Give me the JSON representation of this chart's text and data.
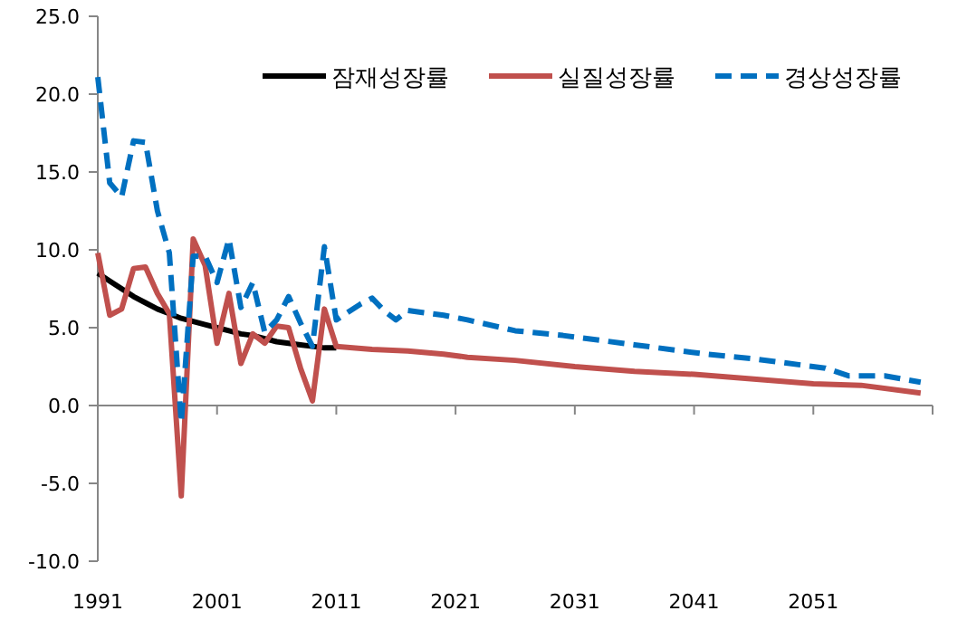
{
  "chart_data": {
    "type": "line",
    "xlim": [
      1991,
      2061
    ],
    "ylim": [
      -10,
      25
    ],
    "xticks": [
      1991,
      2001,
      2011,
      2021,
      2031,
      2041,
      2051,
      {
        "value": 2061,
        "label": null
      }
    ],
    "yticks": [
      {
        "value": -10,
        "label": "-10.0"
      },
      {
        "value": -5,
        "label": "-5.0"
      },
      {
        "value": 0,
        "label": "0.0"
      },
      {
        "value": 5,
        "label": "5.0"
      },
      {
        "value": 10,
        "label": "10.0"
      },
      {
        "value": 15,
        "label": "15.0"
      },
      {
        "value": 20,
        "label": "20.0"
      },
      {
        "value": 25,
        "label": "25.0"
      }
    ],
    "legend": "top",
    "series": [
      {
        "name": "잠재성장률",
        "color": "#000000",
        "line_style": "solid",
        "x": [
          1991,
          1992,
          1993,
          1994,
          1995,
          1996,
          1997,
          1998,
          1999,
          2000,
          2001,
          2002,
          2003,
          2004,
          2005,
          2006,
          2007,
          2008,
          2009,
          2010,
          2011
        ],
        "values": [
          8.5,
          8.0,
          7.5,
          7.0,
          6.6,
          6.2,
          5.9,
          5.6,
          5.4,
          5.2,
          5.0,
          4.8,
          4.6,
          4.5,
          4.3,
          4.1,
          4.0,
          3.9,
          3.8,
          3.7,
          3.7
        ]
      },
      {
        "name": "실질성장률",
        "color": "#c0504d",
        "line_style": "solid",
        "x": [
          1991,
          1992,
          1993,
          1994,
          1995,
          1996,
          1997,
          1998,
          1999,
          2000,
          2001,
          2002,
          2003,
          2004,
          2005,
          2006,
          2007,
          2008,
          2009,
          2010,
          2011,
          2014,
          2017,
          2020,
          2022,
          2026,
          2031,
          2036,
          2041,
          2046,
          2051,
          2055,
          2060
        ],
        "values": [
          9.8,
          5.8,
          6.2,
          8.8,
          8.9,
          7.2,
          5.9,
          -5.8,
          10.7,
          9.0,
          4.0,
          7.2,
          2.7,
          4.6,
          4.0,
          5.1,
          5.0,
          2.4,
          0.3,
          6.2,
          3.8,
          3.6,
          3.5,
          3.3,
          3.1,
          2.9,
          2.5,
          2.2,
          2.0,
          1.7,
          1.4,
          1.3,
          0.8
        ]
      },
      {
        "name": "경상성장률",
        "color": "#0070c0",
        "line_style": "dashed",
        "x": [
          1991,
          1992,
          1993,
          1994,
          1995,
          1996,
          1997,
          1998,
          1999,
          2000,
          2001,
          2002,
          2003,
          2004,
          2005,
          2006,
          2007,
          2008,
          2009,
          2010,
          2011,
          2012,
          2013,
          2014,
          2015,
          2016,
          2017,
          2020,
          2022,
          2026,
          2030,
          2036,
          2042,
          2046,
          2050,
          2052,
          2054,
          2057,
          2060
        ],
        "values": [
          21.1,
          14.3,
          13.4,
          17.0,
          16.9,
          12.5,
          9.8,
          -1.1,
          9.6,
          9.6,
          7.9,
          10.7,
          6.3,
          7.9,
          4.7,
          5.5,
          7.0,
          5.3,
          3.8,
          10.2,
          5.5,
          6.0,
          6.5,
          6.9,
          6.1,
          5.5,
          6.1,
          5.8,
          5.5,
          4.8,
          4.5,
          3.9,
          3.3,
          3.0,
          2.6,
          2.4,
          1.9,
          1.9,
          1.5
        ]
      }
    ]
  }
}
